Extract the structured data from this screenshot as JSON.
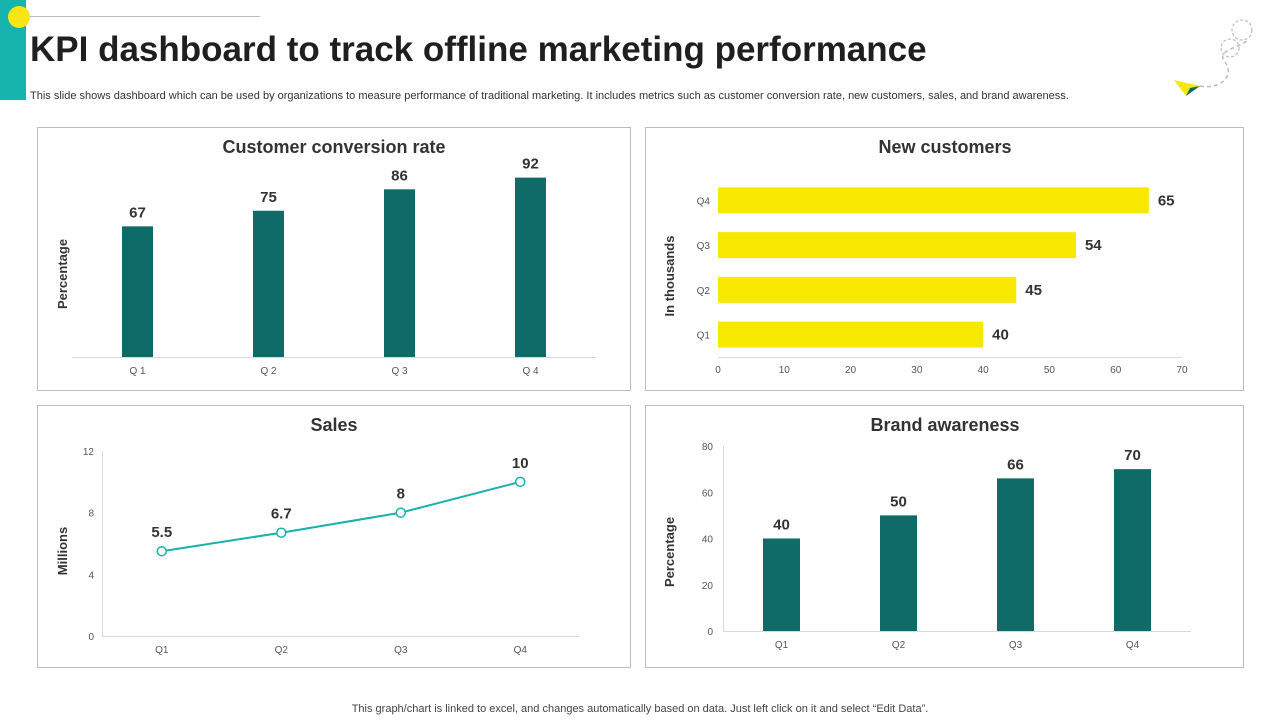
{
  "title": "KPI dashboard to track offline marketing performance",
  "subtitle": "This slide shows dashboard which can be used by organizations to measure performance of traditional marketing. It includes metrics such as customer conversion rate, new customers, sales, and brand awareness.",
  "footer": "This graph/chart is linked to excel,  and changes automatically based on data. Just left click on it and select “Edit Data”.",
  "colors": {
    "teal": "#0e6b68",
    "yellow": "#f8e800",
    "line": "#1ab0ab",
    "accent": "#17b3ad"
  },
  "chart_data": [
    {
      "type": "bar",
      "title": "Customer conversion rate",
      "ylabel": "Percentage",
      "xlabel": "",
      "categories": [
        "Q 1",
        "Q 2",
        "Q 3",
        "Q 4"
      ],
      "values": [
        67,
        75,
        86,
        92
      ],
      "ylim": [
        0,
        100
      ],
      "grid": false
    },
    {
      "type": "bar",
      "orientation": "horizontal",
      "title": "New customers",
      "ylabel": "In  thousands",
      "categories": [
        "Q1",
        "Q2",
        "Q3",
        "Q4"
      ],
      "values": [
        40,
        45,
        54,
        65
      ],
      "xlim": [
        0,
        70
      ],
      "xticks": [
        "0",
        "10",
        "20",
        "30",
        "40",
        "50",
        "60",
        "70"
      ]
    },
    {
      "type": "line",
      "title": "Sales",
      "ylabel": "Millions",
      "categories": [
        "Q1",
        "Q2",
        "Q3",
        "Q4"
      ],
      "values": [
        5.5,
        6.7,
        8,
        10
      ],
      "value_labels": [
        "5.5",
        "6.7",
        "8",
        "10"
      ],
      "ylim": [
        0,
        12
      ],
      "yticks": [
        "0",
        "4",
        "8",
        "12"
      ]
    },
    {
      "type": "bar",
      "title": "Brand awareness",
      "ylabel": "Percentage",
      "categories": [
        "Q1",
        "Q2",
        "Q3",
        "Q4"
      ],
      "values": [
        40,
        50,
        66,
        70
      ],
      "ylim": [
        0,
        80
      ],
      "yticks": [
        "0",
        "20",
        "40",
        "60",
        "80"
      ]
    }
  ]
}
